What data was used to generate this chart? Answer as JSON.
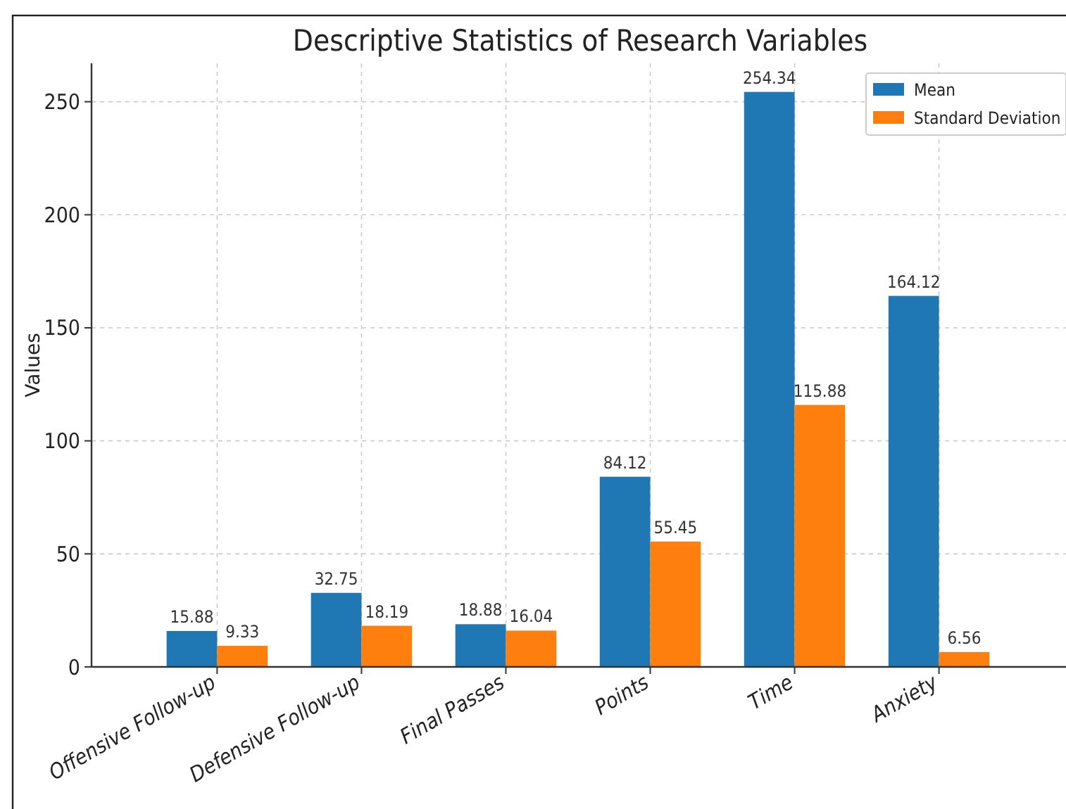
{
  "chart_data": {
    "type": "bar",
    "title": "Descriptive Statistics of Research Variables",
    "ylabel": "Values",
    "categories": [
      "Offensive Follow-up",
      "Defensive Follow-up",
      "Final Passes",
      "Points",
      "Time",
      "Anxiety"
    ],
    "series": [
      {
        "name": "Mean",
        "color": "#1f77b4",
        "values": [
          15.88,
          32.75,
          18.88,
          84.12,
          254.34,
          164.12
        ]
      },
      {
        "name": "Standard Deviation",
        "color": "#ff7f0e",
        "values": [
          9.33,
          18.19,
          16.04,
          55.45,
          115.88,
          6.56
        ]
      }
    ],
    "ylim": [
      0,
      267
    ],
    "yticks": [
      0,
      50,
      100,
      150,
      200,
      250
    ],
    "grid": true,
    "legend": "top right",
    "data_labels": true
  }
}
